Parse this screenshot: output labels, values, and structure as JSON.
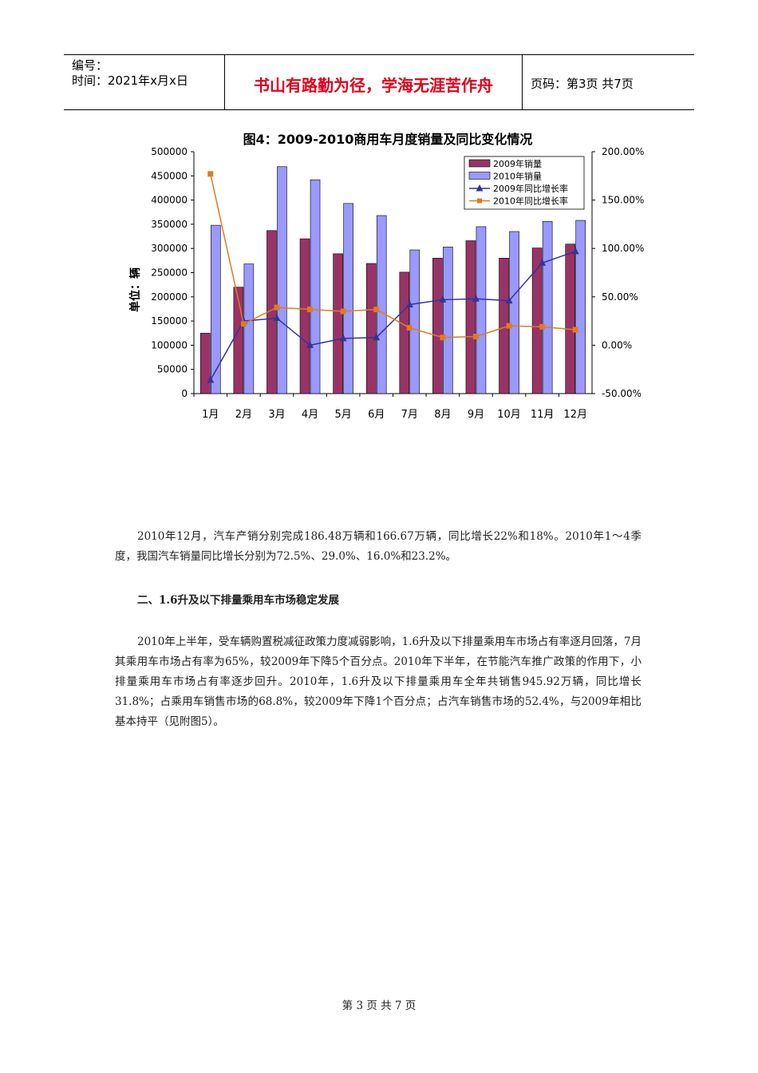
{
  "header": {
    "number_label": "编号：",
    "time_label": "时间：2021年x月x日",
    "motto": "书山有路勤为径，学海无涯苦作舟",
    "page_info": "页码：第3页 共7页"
  },
  "chart_data": {
    "type": "bar",
    "title": "图4：2009-2010商用车月度销量及同比变化情况",
    "ylabel": "单位：辆",
    "categories": [
      "1月",
      "2月",
      "3月",
      "4月",
      "5月",
      "6月",
      "7月",
      "8月",
      "9月",
      "10月",
      "11月",
      "12月"
    ],
    "ylim": [
      0,
      500000
    ],
    "y_ticks": [
      "500000",
      "450000",
      "400000",
      "350000",
      "300000",
      "250000",
      "200000",
      "150000",
      "100000",
      "50000",
      "0"
    ],
    "y2lim": [
      -50,
      200
    ],
    "y2_ticks": [
      "200.00%",
      "150.00%",
      "100.00%",
      "50.00%",
      "0.00%",
      "-50.00%"
    ],
    "series": [
      {
        "name": "2009年销量",
        "kind": "bar",
        "color": "#993366",
        "values": [
          125000,
          220000,
          337000,
          320000,
          289000,
          269000,
          251000,
          280000,
          316000,
          280000,
          301000,
          309000
        ]
      },
      {
        "name": "2010年销量",
        "kind": "bar",
        "color": "#9999ff",
        "values": [
          348000,
          268000,
          469000,
          442000,
          393000,
          368000,
          297000,
          303000,
          345000,
          335000,
          356000,
          358000
        ]
      },
      {
        "name": "2009年同比增长率",
        "kind": "line",
        "axis": "right",
        "color": "#333399",
        "marker": "triangle",
        "values": [
          -36,
          25,
          28,
          0,
          7,
          8,
          42,
          47,
          48,
          46,
          85,
          97
        ]
      },
      {
        "name": "2010年同比增长率",
        "kind": "line",
        "axis": "right",
        "color": "#e07b20",
        "marker": "square",
        "values": [
          177,
          22,
          39,
          37,
          35,
          37,
          18,
          8,
          9,
          20,
          19,
          16
        ]
      }
    ],
    "legend_position": "top-right",
    "grid": false
  },
  "paragraphs": {
    "p1": "2010年12月，汽车产销分别完成186.48万辆和166.67万辆，同比增长22%和18%。2010年1～4季度，我国汽车销量同比增长分别为72.5%、29.0%、16.0%和23.2%。",
    "heading": "二、1.6升及以下排量乘用车市场稳定发展",
    "p2": "2010年上半年，受车辆购置税减征政策力度减弱影响，1.6升及以下排量乘用车市场占有率逐月回落，7月其乘用车市场占有率为65%，较2009年下降5个百分点。2010年下半年，在节能汽车推广政策的作用下，小排量乘用车市场占有率逐步回升。2010年，1.6升及以下排量乘用车全年共销售945.92万辆，同比增长31.8%；占乘用车销售市场的68.8%，较2009年下降1个百分点；占汽车销售市场的52.4%，与2009年相比基本持平（见附图5）。"
  },
  "footer": {
    "page_number": "第 3 页 共 7 页"
  }
}
